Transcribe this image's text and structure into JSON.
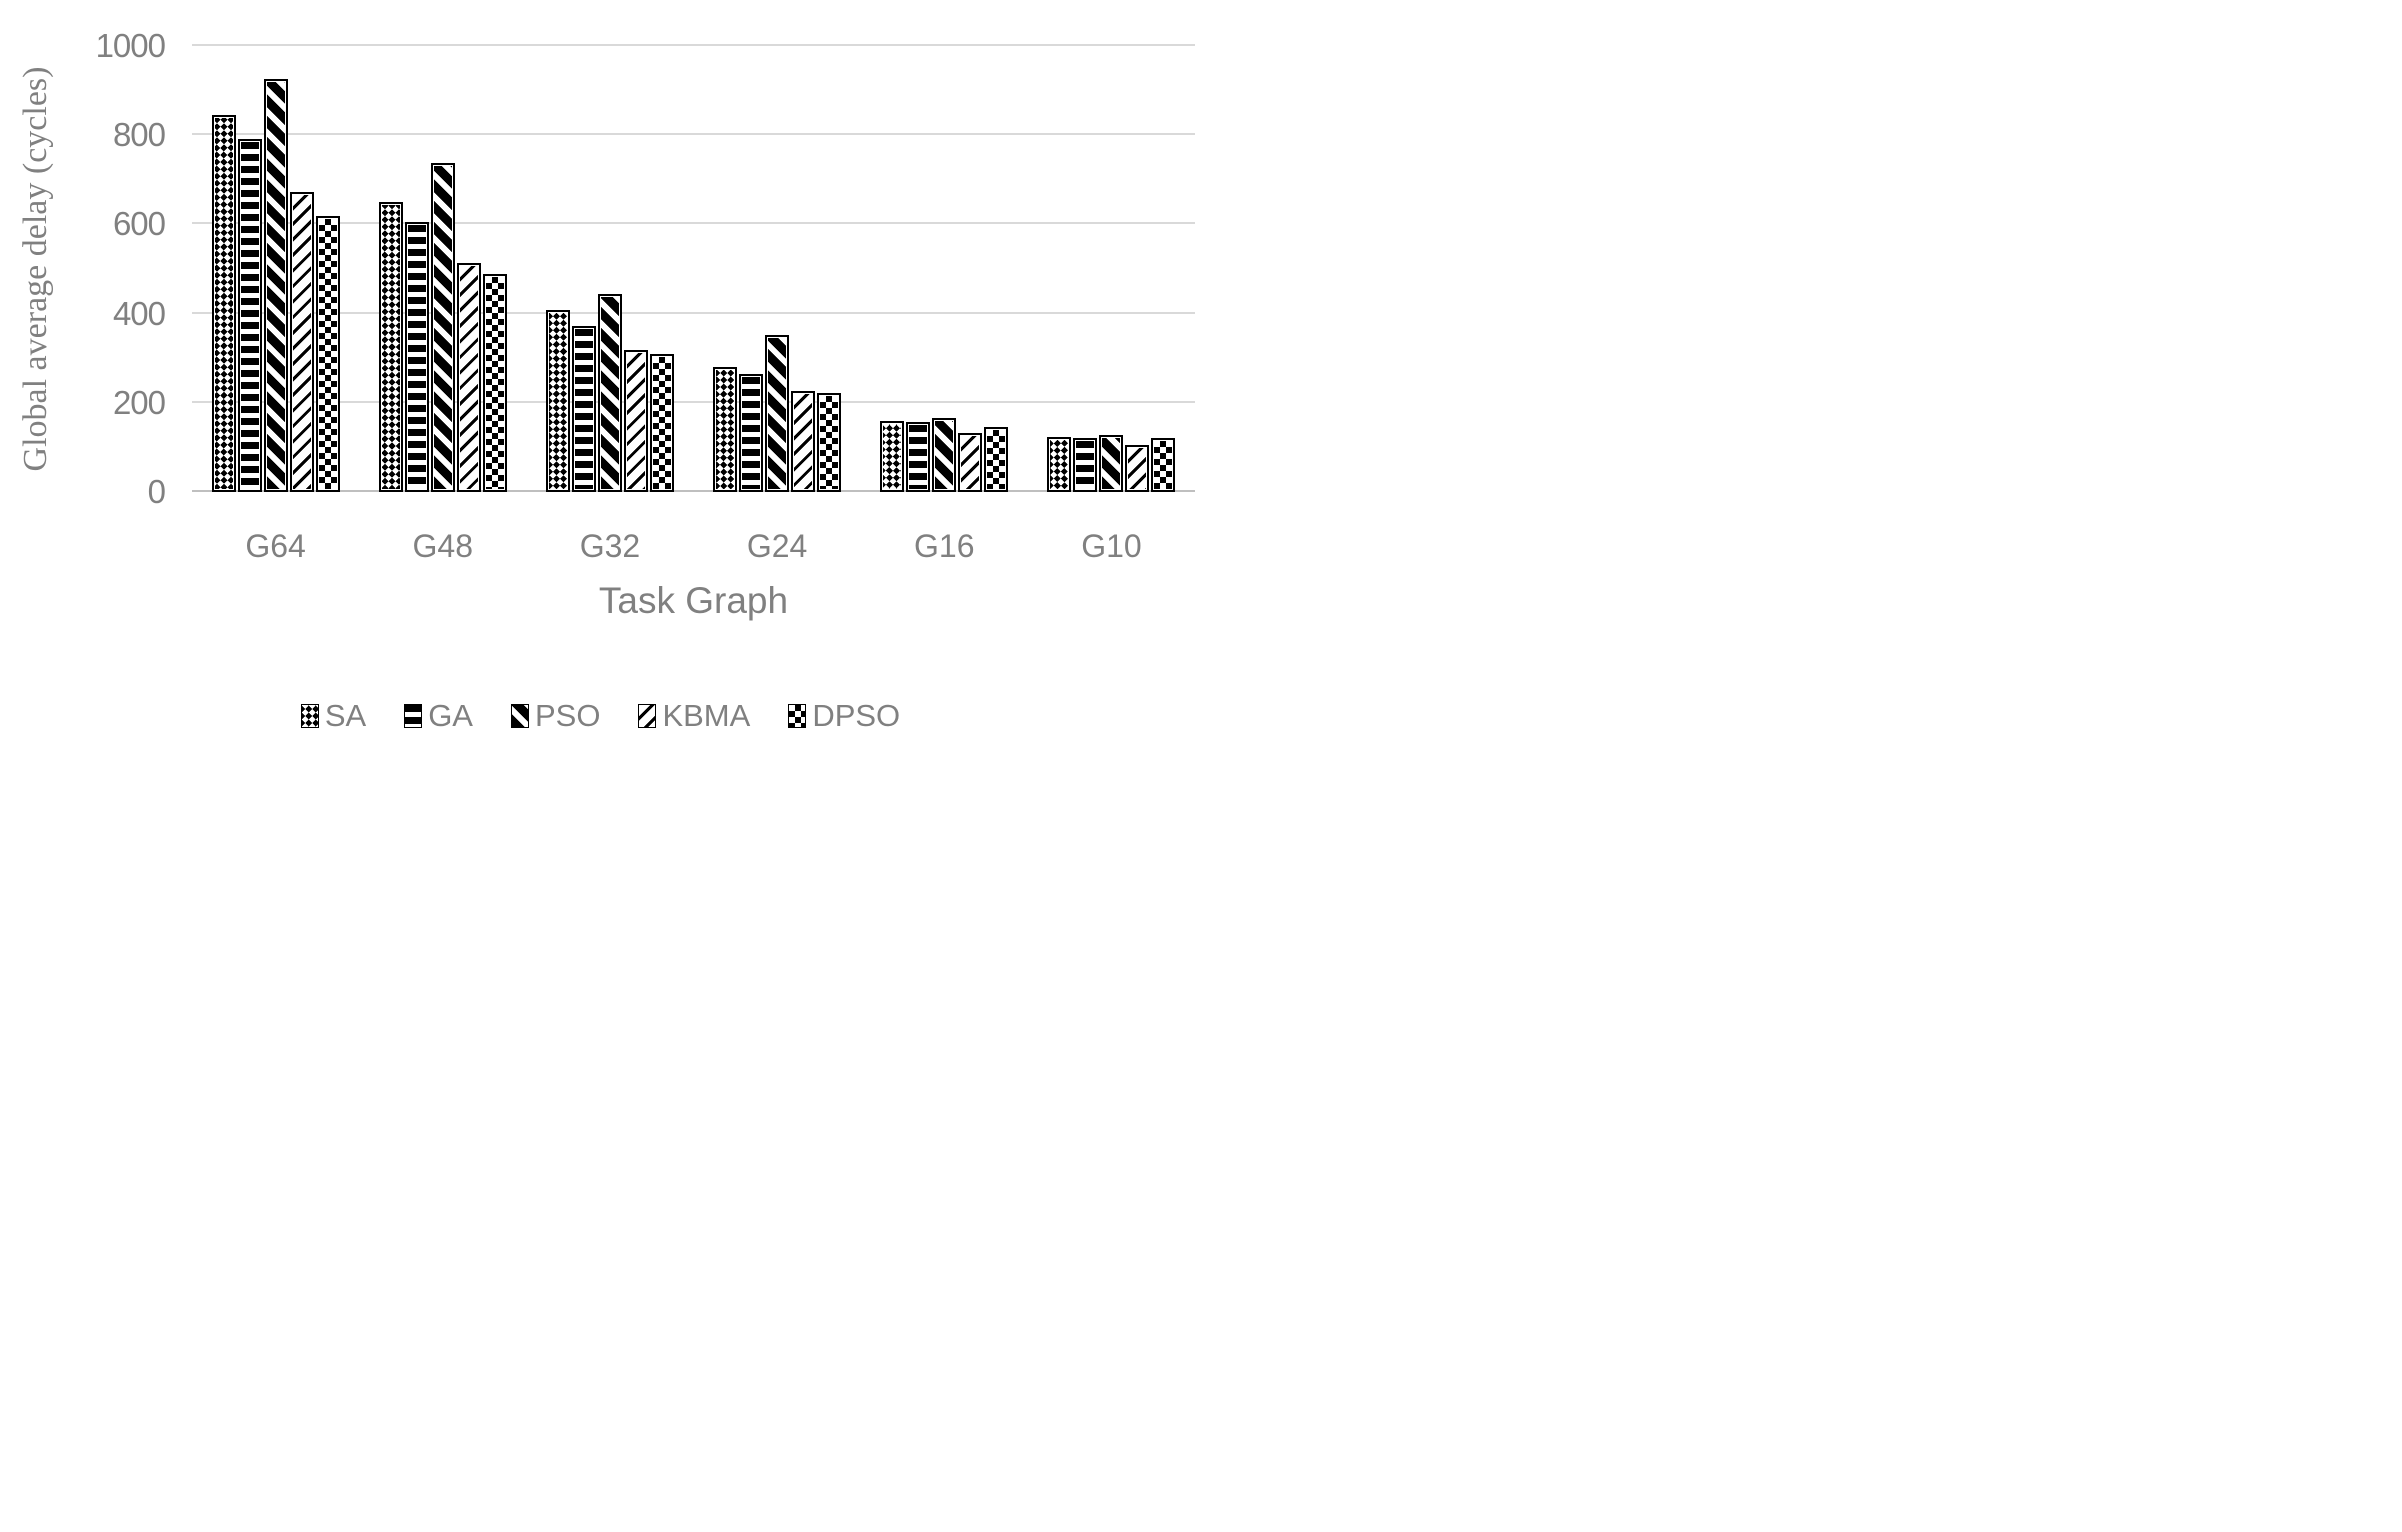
{
  "chart_data": {
    "type": "bar",
    "title": "",
    "xlabel": "Task Graph",
    "ylabel": "Global average delay (cycles)",
    "ylim": [
      0,
      1000
    ],
    "yticks": [
      0,
      200,
      400,
      600,
      800,
      1000
    ],
    "grid": true,
    "legend_position": "bottom",
    "categories": [
      "G64",
      "G48",
      "G32",
      "G24",
      "G16",
      "G10"
    ],
    "series": [
      {
        "name": "SA",
        "pattern": "diamond-lattice",
        "values": [
          845,
          650,
          407,
          280,
          160,
          124
        ]
      },
      {
        "name": "GA",
        "pattern": "horizontal-stripes",
        "values": [
          791,
          606,
          373,
          264,
          158,
          122
        ]
      },
      {
        "name": "PSO",
        "pattern": "diagonal-stripes-down",
        "values": [
          925,
          737,
          443,
          351,
          166,
          128
        ]
      },
      {
        "name": "KBMA",
        "pattern": "diagonal-stripes-up",
        "values": [
          673,
          514,
          318,
          226,
          133,
          105
        ]
      },
      {
        "name": "DPSO",
        "pattern": "checkerboard",
        "values": [
          619,
          489,
          309,
          223,
          145,
          121
        ]
      }
    ]
  },
  "colors": {
    "text": "#808080",
    "gridline": "#d9d9d9",
    "axis_line": "#bfbfbf",
    "bar_outline": "#000000",
    "background": "#ffffff"
  }
}
